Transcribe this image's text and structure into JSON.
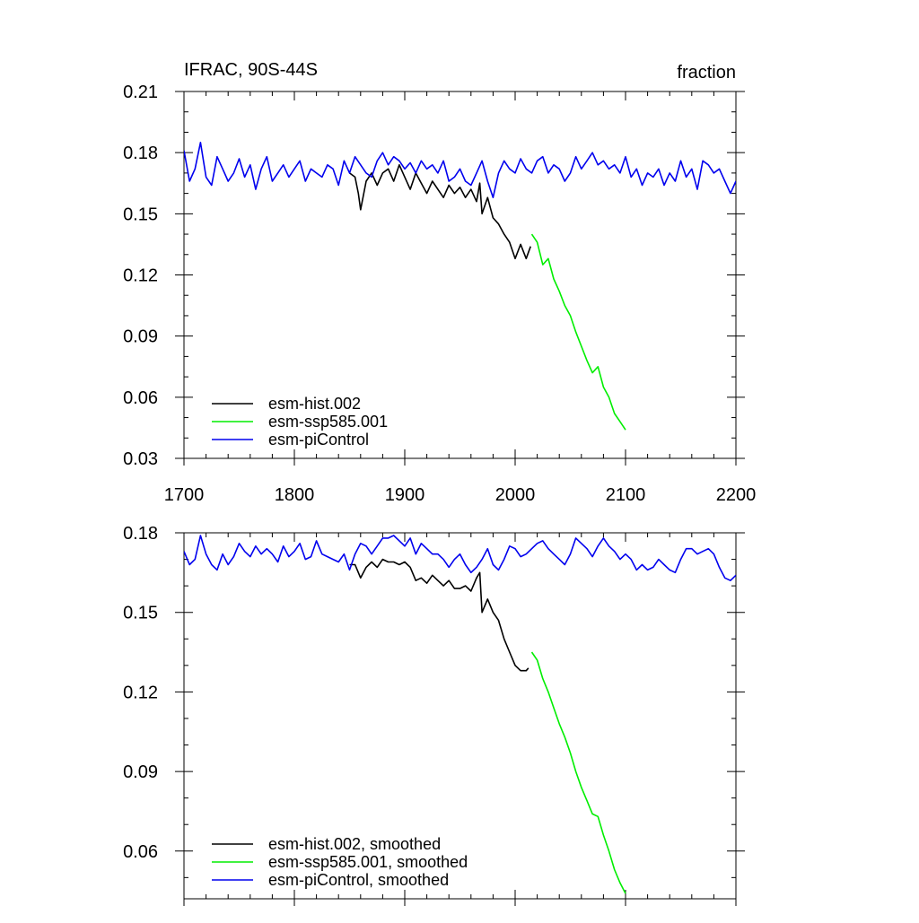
{
  "chart_data": [
    {
      "type": "line",
      "title": "IFRAC, 90S-44S",
      "units": "fraction",
      "xlim": [
        1700,
        2200
      ],
      "ylim": [
        0.03,
        0.21
      ],
      "xticks": [
        "1700",
        "1800",
        "1900",
        "2000",
        "2100",
        "2200"
      ],
      "yticks": [
        "0.03",
        "0.06",
        "0.09",
        "0.12",
        "0.15",
        "0.18",
        "0.21"
      ],
      "grid": false,
      "legend": "bottom-left",
      "series": [
        {
          "name": "esm-hist.002",
          "color": "#000000",
          "x": [
            1850,
            1855,
            1858,
            1860,
            1865,
            1870,
            1875,
            1880,
            1885,
            1890,
            1895,
            1900,
            1905,
            1910,
            1915,
            1920,
            1925,
            1930,
            1935,
            1940,
            1945,
            1950,
            1955,
            1960,
            1965,
            1968,
            1970,
            1975,
            1980,
            1985,
            1990,
            1995,
            2000,
            2005,
            2010,
            2014
          ],
          "values": [
            0.17,
            0.168,
            0.16,
            0.152,
            0.166,
            0.17,
            0.164,
            0.17,
            0.172,
            0.166,
            0.174,
            0.168,
            0.162,
            0.17,
            0.165,
            0.16,
            0.166,
            0.162,
            0.158,
            0.164,
            0.16,
            0.163,
            0.158,
            0.162,
            0.156,
            0.165,
            0.15,
            0.158,
            0.148,
            0.145,
            0.14,
            0.136,
            0.128,
            0.135,
            0.128,
            0.134
          ]
        },
        {
          "name": "esm-ssp585.001",
          "color": "#00ee00",
          "x": [
            2015,
            2020,
            2025,
            2030,
            2035,
            2040,
            2045,
            2050,
            2055,
            2060,
            2065,
            2070,
            2075,
            2080,
            2085,
            2090,
            2095,
            2100
          ],
          "values": [
            0.14,
            0.136,
            0.125,
            0.128,
            0.118,
            0.112,
            0.105,
            0.1,
            0.092,
            0.085,
            0.078,
            0.072,
            0.075,
            0.065,
            0.06,
            0.052,
            0.048,
            0.044
          ]
        },
        {
          "name": "esm-piControl",
          "color": "#0000ee",
          "x": [
            1700,
            1705,
            1710,
            1715,
            1720,
            1725,
            1730,
            1735,
            1740,
            1745,
            1750,
            1755,
            1760,
            1765,
            1770,
            1775,
            1780,
            1785,
            1790,
            1795,
            1800,
            1805,
            1810,
            1815,
            1820,
            1825,
            1830,
            1835,
            1840,
            1845,
            1850,
            1855,
            1860,
            1865,
            1870,
            1875,
            1880,
            1885,
            1890,
            1895,
            1900,
            1905,
            1910,
            1915,
            1920,
            1925,
            1930,
            1935,
            1940,
            1945,
            1950,
            1955,
            1960,
            1965,
            1970,
            1975,
            1980,
            1985,
            1990,
            1995,
            2000,
            2005,
            2010,
            2015,
            2020,
            2025,
            2030,
            2035,
            2040,
            2045,
            2050,
            2055,
            2060,
            2065,
            2070,
            2075,
            2080,
            2085,
            2090,
            2095,
            2100,
            2105,
            2110,
            2115,
            2120,
            2125,
            2130,
            2135,
            2140,
            2145,
            2150,
            2155,
            2160,
            2165,
            2170,
            2175,
            2180,
            2185,
            2190,
            2195,
            2200
          ],
          "values": [
            0.181,
            0.166,
            0.172,
            0.185,
            0.168,
            0.164,
            0.178,
            0.172,
            0.166,
            0.17,
            0.177,
            0.168,
            0.174,
            0.162,
            0.172,
            0.178,
            0.166,
            0.17,
            0.174,
            0.168,
            0.172,
            0.176,
            0.166,
            0.172,
            0.17,
            0.168,
            0.174,
            0.172,
            0.164,
            0.176,
            0.17,
            0.178,
            0.174,
            0.17,
            0.168,
            0.176,
            0.18,
            0.174,
            0.178,
            0.176,
            0.172,
            0.175,
            0.17,
            0.176,
            0.172,
            0.174,
            0.17,
            0.176,
            0.166,
            0.168,
            0.172,
            0.166,
            0.164,
            0.17,
            0.176,
            0.166,
            0.158,
            0.17,
            0.176,
            0.172,
            0.17,
            0.177,
            0.172,
            0.17,
            0.176,
            0.178,
            0.17,
            0.174,
            0.172,
            0.166,
            0.17,
            0.178,
            0.172,
            0.176,
            0.18,
            0.174,
            0.176,
            0.172,
            0.174,
            0.17,
            0.178,
            0.168,
            0.172,
            0.164,
            0.17,
            0.168,
            0.172,
            0.164,
            0.17,
            0.166,
            0.176,
            0.168,
            0.172,
            0.162,
            0.176,
            0.174,
            0.17,
            0.172,
            0.166,
            0.16,
            0.166
          ]
        }
      ]
    },
    {
      "type": "line",
      "xlim": [
        1700,
        2200
      ],
      "ylim": [
        0.042,
        0.18
      ],
      "yticks": [
        "0.06",
        "0.09",
        "0.12",
        "0.15",
        "0.18"
      ],
      "grid": false,
      "legend": "bottom-left",
      "series": [
        {
          "name": "esm-hist.002, smoothed",
          "color": "#000000",
          "x": [
            1850,
            1855,
            1860,
            1865,
            1870,
            1875,
            1880,
            1885,
            1890,
            1895,
            1900,
            1905,
            1910,
            1915,
            1920,
            1925,
            1930,
            1935,
            1940,
            1945,
            1950,
            1955,
            1960,
            1965,
            1968,
            1970,
            1975,
            1980,
            1985,
            1990,
            1995,
            2000,
            2005,
            2010,
            2012
          ],
          "values": [
            0.168,
            0.168,
            0.163,
            0.167,
            0.169,
            0.167,
            0.17,
            0.169,
            0.169,
            0.168,
            0.169,
            0.167,
            0.162,
            0.163,
            0.161,
            0.164,
            0.162,
            0.16,
            0.162,
            0.159,
            0.159,
            0.16,
            0.158,
            0.163,
            0.165,
            0.15,
            0.155,
            0.15,
            0.147,
            0.14,
            0.135,
            0.13,
            0.128,
            0.128,
            0.129
          ]
        },
        {
          "name": "esm-ssp585.001, smoothed",
          "color": "#00ee00",
          "x": [
            2015,
            2020,
            2025,
            2030,
            2035,
            2040,
            2045,
            2050,
            2055,
            2060,
            2065,
            2070,
            2075,
            2080,
            2085,
            2090,
            2095,
            2100
          ],
          "values": [
            0.135,
            0.132,
            0.125,
            0.12,
            0.114,
            0.108,
            0.103,
            0.097,
            0.09,
            0.084,
            0.079,
            0.074,
            0.073,
            0.066,
            0.06,
            0.053,
            0.048,
            0.044
          ]
        },
        {
          "name": "esm-piControl, smoothed",
          "color": "#0000ee",
          "x": [
            1700,
            1705,
            1710,
            1715,
            1720,
            1725,
            1730,
            1735,
            1740,
            1745,
            1750,
            1755,
            1760,
            1765,
            1770,
            1775,
            1780,
            1785,
            1790,
            1795,
            1800,
            1805,
            1810,
            1815,
            1820,
            1825,
            1830,
            1835,
            1840,
            1845,
            1850,
            1855,
            1860,
            1865,
            1870,
            1875,
            1880,
            1885,
            1890,
            1895,
            1900,
            1905,
            1910,
            1915,
            1920,
            1925,
            1930,
            1935,
            1940,
            1945,
            1950,
            1955,
            1960,
            1965,
            1970,
            1975,
            1980,
            1985,
            1990,
            1995,
            2000,
            2005,
            2010,
            2015,
            2020,
            2025,
            2030,
            2035,
            2040,
            2045,
            2050,
            2055,
            2060,
            2065,
            2070,
            2075,
            2080,
            2085,
            2090,
            2095,
            2100,
            2105,
            2110,
            2115,
            2120,
            2125,
            2130,
            2135,
            2140,
            2145,
            2150,
            2155,
            2160,
            2165,
            2170,
            2175,
            2180,
            2185,
            2190,
            2195,
            2200
          ],
          "values": [
            0.173,
            0.168,
            0.17,
            0.179,
            0.172,
            0.168,
            0.166,
            0.172,
            0.168,
            0.171,
            0.176,
            0.173,
            0.171,
            0.175,
            0.172,
            0.174,
            0.172,
            0.169,
            0.175,
            0.171,
            0.173,
            0.176,
            0.17,
            0.171,
            0.177,
            0.172,
            0.171,
            0.17,
            0.169,
            0.172,
            0.166,
            0.172,
            0.176,
            0.175,
            0.172,
            0.175,
            0.178,
            0.178,
            0.179,
            0.177,
            0.175,
            0.178,
            0.172,
            0.176,
            0.174,
            0.172,
            0.172,
            0.17,
            0.167,
            0.17,
            0.172,
            0.168,
            0.165,
            0.167,
            0.17,
            0.174,
            0.168,
            0.166,
            0.17,
            0.175,
            0.174,
            0.171,
            0.172,
            0.174,
            0.176,
            0.177,
            0.174,
            0.172,
            0.17,
            0.168,
            0.172,
            0.178,
            0.176,
            0.174,
            0.171,
            0.175,
            0.178,
            0.175,
            0.173,
            0.17,
            0.172,
            0.17,
            0.166,
            0.168,
            0.166,
            0.167,
            0.17,
            0.168,
            0.166,
            0.165,
            0.17,
            0.174,
            0.174,
            0.172,
            0.173,
            0.174,
            0.172,
            0.167,
            0.163,
            0.162,
            0.164
          ]
        }
      ]
    }
  ]
}
